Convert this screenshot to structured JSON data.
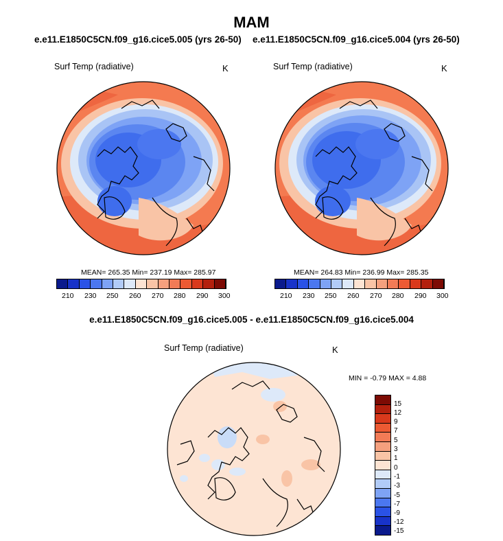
{
  "season": "MAM",
  "panels": [
    {
      "title": "e.e11.E1850C5CN.f09_g16.cice5.005 (yrs 26-50)",
      "variable": "Surf Temp (radiative)",
      "unit": "K",
      "stats": "MEAN= 265.35  Min= 237.19  Max= 285.97",
      "mean": 265.35,
      "min": 237.19,
      "max": 285.97,
      "colorbar_ticks": [
        "210",
        "230",
        "250",
        "260",
        "270",
        "280",
        "290",
        "300"
      ]
    },
    {
      "title": "e.e11.E1850C5CN.f09_g16.cice5.004 (yrs 26-50)",
      "variable": "Surf Temp (radiative)",
      "unit": "K",
      "stats": "MEAN= 264.83  Min= 236.99  Max= 285.35",
      "mean": 264.83,
      "min": 236.99,
      "max": 285.35,
      "colorbar_ticks": [
        "210",
        "230",
        "250",
        "260",
        "270",
        "280",
        "290",
        "300"
      ]
    }
  ],
  "diff_panel": {
    "title": "e.e11.E1850C5CN.f09_g16.cice5.005 - e.e11.E1850C5CN.f09_g16.cice5.004",
    "variable": "Surf Temp (radiative)",
    "unit": "K",
    "stats": "MIN =  -0.79 MAX =   4.88",
    "min": -0.79,
    "max": 4.88,
    "colorbar_ticks": [
      "15",
      "12",
      "9",
      "7",
      "5",
      "3",
      "1",
      "0",
      "-1",
      "-3",
      "-5",
      "-7",
      "-9",
      "-12",
      "-15"
    ]
  },
  "colors": {
    "abs_scale": [
      "#0a1a8c",
      "#1833c9",
      "#2a52e6",
      "#4b77f0",
      "#7ea3f5",
      "#b1cbf7",
      "#dde9f9",
      "#fde4d3",
      "#f9c4a6",
      "#f5a07e",
      "#f27b56",
      "#ec5a33",
      "#d9391c",
      "#b3200d",
      "#7d0b04"
    ],
    "diff_scale": [
      "#7d0b04",
      "#b3200d",
      "#d9391c",
      "#ec5a33",
      "#f27b56",
      "#f5a07e",
      "#f9c4a6",
      "#fde4d3",
      "#dde9f9",
      "#b1cbf7",
      "#7ea3f5",
      "#4b77f0",
      "#2a52e6",
      "#1833c9",
      "#0a1a8c"
    ],
    "warm": "#f47a50",
    "neutral": "#fde4d3",
    "cold_deep": "#2e5be8",
    "cold_mid": "#5b86f0",
    "cold_light": "#a9c4f5"
  }
}
